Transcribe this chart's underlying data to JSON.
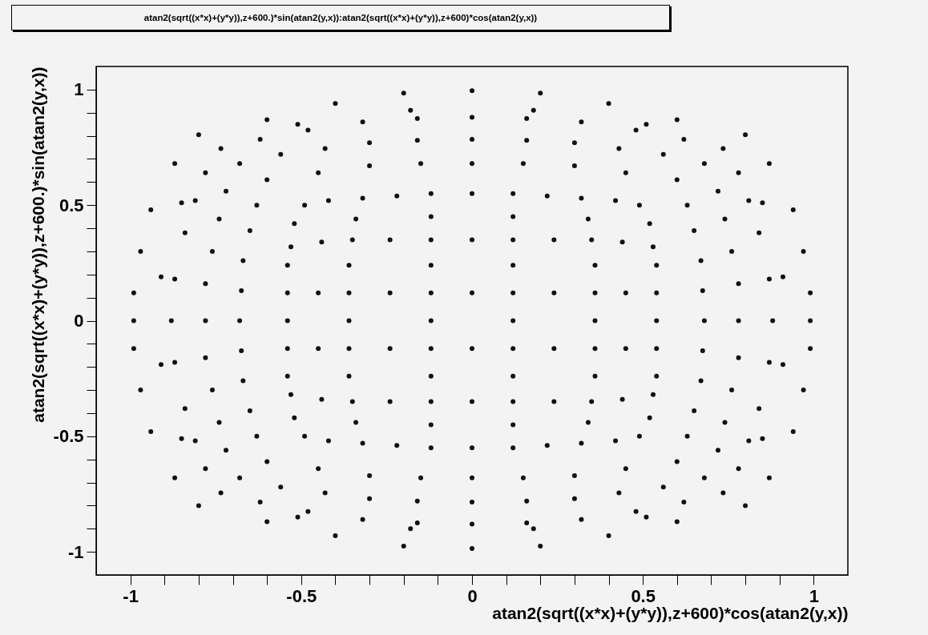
{
  "chart_data": {
    "type": "scatter",
    "title": "atan2(sqrt((x*x)+(y*y)),z+600.)*sin(atan2(y,x)):atan2(sqrt((x*x)+(y*y)),z+600)*cos(atan2(y,x))",
    "xlabel": "atan2(sqrt((x*x)+(y*y)),z+600)*cos(atan2(y,x))",
    "ylabel": "atan2(sqrt((x*x)+(y*y)),z+600.)*sin(atan2(y,x))",
    "xlim": [
      -1.1,
      1.1
    ],
    "ylim": [
      -1.1,
      1.1
    ],
    "xticks": [
      -1,
      {
        "value": -0.9,
        "label": null
      },
      {
        "value": -0.8,
        "label": null
      },
      {
        "value": -0.7,
        "label": null
      },
      {
        "value": -0.6,
        "label": null
      },
      -0.5,
      {
        "value": -0.4,
        "label": null
      },
      {
        "value": -0.3,
        "label": null
      },
      {
        "value": -0.2,
        "label": null
      },
      {
        "value": -0.1,
        "label": null
      },
      0,
      {
        "value": 0.1,
        "label": null
      },
      {
        "value": 0.2,
        "label": null
      },
      {
        "value": 0.3,
        "label": null
      },
      {
        "value": 0.4,
        "label": null
      },
      0.5,
      {
        "value": 0.6,
        "label": null
      },
      {
        "value": 0.7,
        "label": null
      },
      {
        "value": 0.8,
        "label": null
      },
      {
        "value": 0.9,
        "label": null
      },
      1
    ],
    "yticks": [
      -1,
      {
        "value": -0.9,
        "label": null
      },
      {
        "value": -0.8,
        "label": null
      },
      {
        "value": -0.7,
        "label": null
      },
      {
        "value": -0.6,
        "label": null
      },
      -0.5,
      {
        "value": -0.4,
        "label": null
      },
      {
        "value": -0.3,
        "label": null
      },
      {
        "value": -0.2,
        "label": null
      },
      {
        "value": -0.1,
        "label": null
      },
      0,
      {
        "value": 0.1,
        "label": null
      },
      {
        "value": 0.2,
        "label": null
      },
      {
        "value": 0.3,
        "label": null
      },
      {
        "value": 0.4,
        "label": null
      },
      0.5,
      {
        "value": 0.6,
        "label": null
      },
      {
        "value": 0.7,
        "label": null
      },
      {
        "value": 0.8,
        "label": null
      },
      {
        "value": 0.9,
        "label": null
      },
      1
    ],
    "grid": false,
    "legend": false,
    "marker": "circle",
    "series": [
      {
        "color": "#111111",
        "x": [
          0.12,
          0.24,
          0.36,
          0.45,
          0.54,
          0.12,
          0.24,
          0.35,
          0.44,
          0.53,
          0.12,
          0.22,
          0.32,
          0.42,
          0.49,
          0.12,
          0.12,
          0.36,
          0.34,
          0.54,
          0.52,
          0.15,
          0.3,
          0.45,
          0.6,
          0.63,
          0.65,
          0.67,
          0.675,
          0.16,
          0.3,
          0.43,
          0.56,
          0.68,
          0.72,
          0.74,
          0.76,
          0.78,
          0.16,
          0.32,
          0.48,
          0.62,
          0.735,
          0.78,
          0.81,
          0.84,
          0.87,
          0.2,
          0.4,
          0.6,
          0.8,
          0.87,
          0.94,
          0.97,
          0.99,
          0.18,
          0.51,
          0.85,
          0.91,
          -0.12,
          -0.24,
          -0.36,
          -0.45,
          -0.54,
          -0.12,
          -0.24,
          -0.35,
          -0.44,
          -0.53,
          -0.12,
          -0.22,
          -0.32,
          -0.42,
          -0.49,
          -0.12,
          -0.12,
          -0.36,
          -0.34,
          -0.54,
          -0.52,
          -0.15,
          -0.3,
          -0.45,
          -0.6,
          -0.63,
          -0.65,
          -0.67,
          -0.675,
          -0.16,
          -0.3,
          -0.43,
          -0.56,
          -0.68,
          -0.72,
          -0.74,
          -0.76,
          -0.78,
          -0.16,
          -0.32,
          -0.48,
          -0.62,
          -0.735,
          -0.78,
          -0.81,
          -0.84,
          -0.87,
          -0.2,
          -0.4,
          -0.6,
          -0.8,
          -0.87,
          -0.94,
          -0.97,
          -0.99,
          -0.18,
          -0.51,
          -0.85,
          -0.91,
          -0.12,
          -0.24,
          -0.36,
          -0.45,
          -0.54,
          -0.12,
          -0.24,
          -0.35,
          -0.44,
          -0.53,
          -0.12,
          -0.22,
          -0.32,
          -0.42,
          -0.49,
          -0.12,
          -0.12,
          -0.36,
          -0.34,
          -0.54,
          -0.52,
          -0.15,
          -0.3,
          -0.45,
          -0.6,
          -0.63,
          -0.65,
          -0.67,
          -0.675,
          -0.16,
          -0.3,
          -0.43,
          -0.56,
          -0.68,
          -0.72,
          -0.74,
          -0.76,
          -0.78,
          -0.16,
          -0.32,
          -0.48,
          -0.62,
          -0.735,
          -0.78,
          -0.81,
          -0.84,
          -0.87,
          -0.2,
          -0.4,
          -0.6,
          -0.8,
          -0.87,
          -0.94,
          -0.97,
          -0.99,
          -0.18,
          -0.51,
          -0.85,
          -0.91,
          0.12,
          0.24,
          0.36,
          0.45,
          0.54,
          0.12,
          0.24,
          0.35,
          0.44,
          0.53,
          0.12,
          0.22,
          0.32,
          0.42,
          0.49,
          0.12,
          0.12,
          0.36,
          0.34,
          0.54,
          0.52,
          0.15,
          0.3,
          0.45,
          0.6,
          0.63,
          0.65,
          0.67,
          0.675,
          0.16,
          0.3,
          0.43,
          0.56,
          0.68,
          0.72,
          0.74,
          0.76,
          0.78,
          0.16,
          0.32,
          0.48,
          0.62,
          0.735,
          0.78,
          0.81,
          0.84,
          0.87,
          0.2,
          0.4,
          0.6,
          0.8,
          0.87,
          0.94,
          0.97,
          0.99,
          0.18,
          0.51,
          0.85,
          0.91,
          0,
          0,
          0,
          0,
          0,
          0,
          0,
          0,
          0,
          0,
          0,
          0,
          0,
          0,
          0.12,
          0.36,
          0.54,
          0.68,
          0.78,
          0.88,
          0.99,
          -0.12,
          -0.36,
          -0.54,
          -0.68,
          -0.78,
          -0.88,
          -0.99
        ],
        "values": [
          0.12,
          0.12,
          0.12,
          0.12,
          0.12,
          0.35,
          0.35,
          0.35,
          0.34,
          0.32,
          0.55,
          0.54,
          0.53,
          0.52,
          0.5,
          0.24,
          0.45,
          0.24,
          0.44,
          0.24,
          0.42,
          0.68,
          0.67,
          0.64,
          0.61,
          0.5,
          0.39,
          0.26,
          0.13,
          0.78,
          0.77,
          0.745,
          0.72,
          0.68,
          0.56,
          0.44,
          0.3,
          0.16,
          0.875,
          0.86,
          0.825,
          0.785,
          0.745,
          0.64,
          0.52,
          0.38,
          0.18,
          0.985,
          0.94,
          0.87,
          0.805,
          0.68,
          0.48,
          0.3,
          0.12,
          0.91,
          0.85,
          0.51,
          0.19,
          0.12,
          0.12,
          0.12,
          0.12,
          0.12,
          0.35,
          0.35,
          0.35,
          0.34,
          0.32,
          0.55,
          0.54,
          0.53,
          0.52,
          0.5,
          0.24,
          0.45,
          0.24,
          0.44,
          0.24,
          0.42,
          0.68,
          0.67,
          0.64,
          0.61,
          0.5,
          0.39,
          0.26,
          0.13,
          0.78,
          0.77,
          0.745,
          0.72,
          0.68,
          0.56,
          0.44,
          0.3,
          0.16,
          0.875,
          0.86,
          0.825,
          0.785,
          0.745,
          0.64,
          0.52,
          0.38,
          0.18,
          0.985,
          0.94,
          0.87,
          0.805,
          0.68,
          0.48,
          0.3,
          0.12,
          0.91,
          0.85,
          0.51,
          0.19,
          -0.12,
          -0.12,
          -0.12,
          -0.12,
          -0.12,
          -0.35,
          -0.35,
          -0.35,
          -0.34,
          -0.32,
          -0.55,
          -0.54,
          -0.53,
          -0.52,
          -0.5,
          -0.24,
          -0.45,
          -0.24,
          -0.44,
          -0.24,
          -0.42,
          -0.68,
          -0.67,
          -0.64,
          -0.61,
          -0.5,
          -0.39,
          -0.26,
          -0.13,
          -0.78,
          -0.77,
          -0.745,
          -0.72,
          -0.68,
          -0.56,
          -0.44,
          -0.3,
          -0.16,
          -0.875,
          -0.86,
          -0.825,
          -0.785,
          -0.745,
          -0.64,
          -0.52,
          -0.38,
          -0.18,
          -0.975,
          -0.93,
          -0.87,
          -0.8,
          -0.68,
          -0.48,
          -0.3,
          -0.12,
          -0.9,
          -0.85,
          -0.51,
          -0.19,
          -0.12,
          -0.12,
          -0.12,
          -0.12,
          -0.12,
          -0.35,
          -0.35,
          -0.35,
          -0.34,
          -0.32,
          -0.55,
          -0.54,
          -0.53,
          -0.52,
          -0.5,
          -0.24,
          -0.45,
          -0.24,
          -0.44,
          -0.24,
          -0.42,
          -0.68,
          -0.67,
          -0.64,
          -0.61,
          -0.5,
          -0.39,
          -0.26,
          -0.13,
          -0.78,
          -0.77,
          -0.745,
          -0.72,
          -0.68,
          -0.56,
          -0.44,
          -0.3,
          -0.16,
          -0.875,
          -0.86,
          -0.825,
          -0.785,
          -0.745,
          -0.64,
          -0.52,
          -0.38,
          -0.18,
          -0.975,
          -0.93,
          -0.87,
          -0.8,
          -0.68,
          -0.48,
          -0.3,
          -0.12,
          -0.9,
          -0.85,
          -0.51,
          -0.19,
          0.12,
          0.35,
          0.55,
          0.68,
          0.785,
          0.88,
          0.995,
          -0.12,
          -0.35,
          -0.55,
          -0.68,
          -0.785,
          -0.88,
          -0.986,
          0,
          0,
          0,
          0,
          0,
          0,
          0,
          0,
          0,
          0,
          0,
          0,
          0,
          0
        ]
      }
    ]
  }
}
